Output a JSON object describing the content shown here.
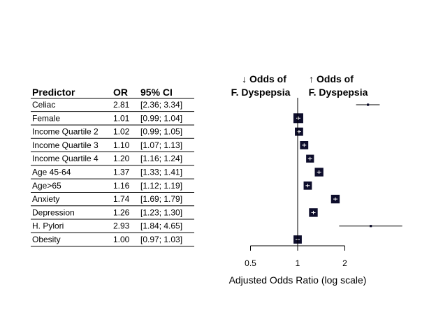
{
  "chart_data": {
    "type": "forest",
    "table_headers": [
      "Predictor",
      "OR",
      "95% CI"
    ],
    "direction_labels": {
      "left": [
        "↓ Odds of",
        "F. Dyspepsia"
      ],
      "right": [
        "↑ Odds of",
        "F. Dyspepsia"
      ]
    },
    "rows": [
      {
        "predictor": "Celiac",
        "or_text": "2.81",
        "ci_text": "[2.36; 3.34]",
        "or": 2.81,
        "lo": 2.36,
        "hi": 3.34,
        "weight": 0.02
      },
      {
        "predictor": "Female",
        "or_text": "1.01",
        "ci_text": "[0.99; 1.04]",
        "or": 1.01,
        "lo": 0.99,
        "hi": 1.04,
        "weight": 1.0
      },
      {
        "predictor": "Income Quartile 2",
        "or_text": "1.02",
        "ci_text": "[0.99; 1.05]",
        "or": 1.02,
        "lo": 0.99,
        "hi": 1.05,
        "weight": 0.8
      },
      {
        "predictor": "Income Quartile 3",
        "or_text": "1.10",
        "ci_text": "[1.07; 1.13]",
        "or": 1.1,
        "lo": 1.07,
        "hi": 1.13,
        "weight": 0.8
      },
      {
        "predictor": "Income Quartile 4",
        "or_text": "1.20",
        "ci_text": "[1.16; 1.24]",
        "or": 1.2,
        "lo": 1.16,
        "hi": 1.24,
        "weight": 0.75
      },
      {
        "predictor": "Age 45-64",
        "or_text": "1.37",
        "ci_text": "[1.33; 1.41]",
        "or": 1.37,
        "lo": 1.33,
        "hi": 1.41,
        "weight": 0.85
      },
      {
        "predictor": "Age>65",
        "or_text": "1.16",
        "ci_text": "[1.12; 1.19]",
        "or": 1.16,
        "lo": 1.12,
        "hi": 1.19,
        "weight": 0.8
      },
      {
        "predictor": "Anxiety",
        "or_text": "1.74",
        "ci_text": "[1.69; 1.79]",
        "or": 1.74,
        "lo": 1.69,
        "hi": 1.79,
        "weight": 0.85
      },
      {
        "predictor": "Depression",
        "or_text": "1.26",
        "ci_text": "[1.23; 1.30]",
        "or": 1.26,
        "lo": 1.23,
        "hi": 1.3,
        "weight": 0.85
      },
      {
        "predictor": "H. Pylori",
        "or_text": "2.93",
        "ci_text": "[1.84; 4.65]",
        "or": 2.93,
        "lo": 1.84,
        "hi": 4.65,
        "weight": 0.02
      },
      {
        "predictor": "Obesity",
        "or_text": "1.00",
        "ci_text": "[0.97; 1.03]",
        "or": 1.0,
        "lo": 0.97,
        "hi": 1.03,
        "weight": 0.8
      }
    ],
    "x_ticks": [
      {
        "value": 0.5,
        "label": "0.5"
      },
      {
        "value": 1,
        "label": "1"
      },
      {
        "value": 2,
        "label": "2"
      }
    ],
    "x_scale": "log",
    "xlabel": "Adjusted Odds Ratio (log scale)",
    "colors": {
      "marker": "#0d0d2b",
      "line": "#000000"
    }
  }
}
